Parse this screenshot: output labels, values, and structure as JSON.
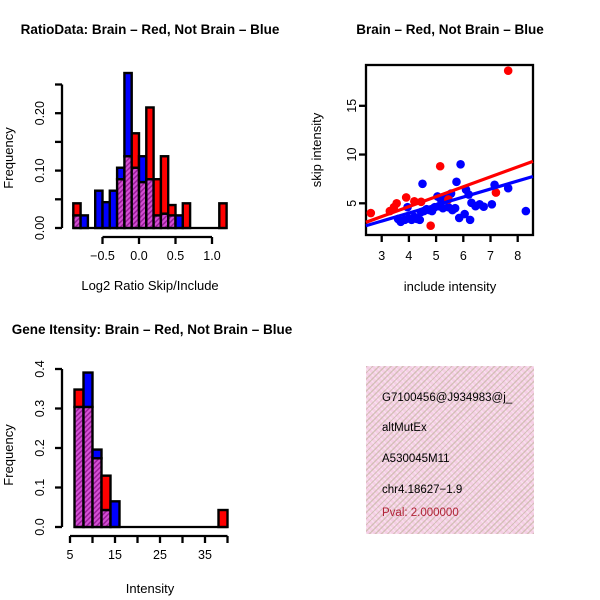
{
  "colors": {
    "brain_red": "#FF0000",
    "notbrain_blue": "#0000FF",
    "overlap_fill": "#9B1F9B",
    "overlap_stripe": "#D44FD4",
    "infobox_pink": "#F5CFE5",
    "infobox_weave": "#BBAF93",
    "pval_red": "#B22438",
    "axis_black": "#000000"
  },
  "chart_data": [
    {
      "id": "ratio-histogram",
      "type": "bar",
      "title": "RatioData: Brain – Red, Not Brain – Blue",
      "xlabel": "Log2 Ratio Skip/Include",
      "ylabel": "Frequency",
      "legend": [
        {
          "name": "Brain",
          "color": "red"
        },
        {
          "name": "Not Brain",
          "color": "blue"
        }
      ],
      "bin_width": 0.1,
      "xlim": [
        -0.95,
        1.25
      ],
      "ylim": [
        0,
        0.25
      ],
      "x_ticks": [
        {
          "v": -0.5,
          "label": "−0.5"
        },
        {
          "v": 0.0,
          "label": "0.0"
        },
        {
          "v": 0.5,
          "label": "0.5"
        },
        {
          "v": 1.0,
          "label": "1.0"
        }
      ],
      "y_ticks": [
        {
          "v": 0,
          "label": "0.00"
        },
        {
          "v": 0.05,
          "label": ""
        },
        {
          "v": 0.1,
          "label": "0.10"
        },
        {
          "v": 0.15,
          "label": ""
        },
        {
          "v": 0.2,
          "label": "0.20"
        },
        {
          "v": 0.25,
          "label": ""
        }
      ],
      "bins": [
        {
          "x": -0.9,
          "blue": 0.022,
          "red": 0.043
        },
        {
          "x": -0.8,
          "blue": 0.022,
          "red": 0
        },
        {
          "x": -0.7,
          "blue": 0,
          "red": 0
        },
        {
          "x": -0.6,
          "blue": 0.065,
          "red": 0
        },
        {
          "x": -0.5,
          "blue": 0.045,
          "red": 0
        },
        {
          "x": -0.4,
          "blue": 0.065,
          "red": 0
        },
        {
          "x": -0.3,
          "blue": 0.105,
          "red": 0.085
        },
        {
          "x": -0.2,
          "blue": 0.27,
          "red": 0.125
        },
        {
          "x": -0.1,
          "blue": 0.105,
          "red": 0.165
        },
        {
          "x": 0.0,
          "blue": 0.125,
          "red": 0.08
        },
        {
          "x": 0.1,
          "blue": 0.085,
          "red": 0.21
        },
        {
          "x": 0.2,
          "blue": 0.022,
          "red": 0.085
        },
        {
          "x": 0.3,
          "blue": 0.025,
          "red": 0.125
        },
        {
          "x": 0.4,
          "blue": 0.022,
          "red": 0.04
        },
        {
          "x": 0.5,
          "blue": 0.022,
          "red": 0
        },
        {
          "x": 0.6,
          "blue": 0,
          "red": 0.043
        },
        {
          "x": 1.1,
          "blue": 0,
          "red": 0.043
        }
      ]
    },
    {
      "id": "intensity-scatter",
      "type": "scatter",
      "title": "Brain – Red, Not Brain – Blue",
      "xlabel": "include intensity",
      "ylabel": "skip intensity",
      "xlim": [
        2.42,
        8.56
      ],
      "ylim": [
        1.75,
        19.2
      ],
      "x_ticks": [
        {
          "v": 3,
          "label": "3"
        },
        {
          "v": 4,
          "label": "4"
        },
        {
          "v": 5,
          "label": "5"
        },
        {
          "v": 6,
          "label": "6"
        },
        {
          "v": 7,
          "label": "7"
        },
        {
          "v": 8,
          "label": "8"
        }
      ],
      "y_ticks": [
        {
          "v": 5,
          "label": "5"
        },
        {
          "v": 10,
          "label": "10"
        },
        {
          "v": 15,
          "label": "15"
        }
      ],
      "red_points": [
        [
          2.6,
          4.0
        ],
        [
          3.3,
          4.2
        ],
        [
          3.45,
          4.6
        ],
        [
          3.55,
          5.0
        ],
        [
          3.9,
          5.6
        ],
        [
          4.2,
          5.2
        ],
        [
          4.45,
          5.15
        ],
        [
          4.8,
          2.7
        ],
        [
          5.15,
          8.8
        ],
        [
          5.45,
          5.4
        ],
        [
          7.2,
          6.1
        ],
        [
          7.65,
          18.6
        ]
      ],
      "blue_points": [
        [
          3.6,
          3.4
        ],
        [
          3.7,
          3.1
        ],
        [
          3.85,
          3.3
        ],
        [
          3.95,
          4.6
        ],
        [
          4.0,
          3.45
        ],
        [
          4.1,
          3.3
        ],
        [
          4.2,
          3.6
        ],
        [
          4.3,
          3.4
        ],
        [
          4.4,
          3.3
        ],
        [
          4.45,
          4.1
        ],
        [
          4.5,
          7.0
        ],
        [
          4.55,
          4.2
        ],
        [
          4.65,
          4.4
        ],
        [
          4.75,
          4.3
        ],
        [
          4.85,
          4.2
        ],
        [
          4.95,
          4.6
        ],
        [
          5.05,
          5.7
        ],
        [
          5.1,
          4.7
        ],
        [
          5.15,
          5.5
        ],
        [
          5.25,
          4.5
        ],
        [
          5.35,
          5.5
        ],
        [
          5.45,
          4.6
        ],
        [
          5.55,
          6.0
        ],
        [
          5.6,
          4.3
        ],
        [
          5.7,
          4.5
        ],
        [
          5.75,
          7.2
        ],
        [
          5.85,
          3.5
        ],
        [
          5.9,
          9.0
        ],
        [
          6.05,
          3.9
        ],
        [
          6.1,
          6.4
        ],
        [
          6.2,
          5.9
        ],
        [
          6.25,
          3.3
        ],
        [
          6.3,
          5.05
        ],
        [
          6.45,
          4.7
        ],
        [
          6.6,
          4.9
        ],
        [
          6.75,
          4.65
        ],
        [
          7.05,
          4.9
        ],
        [
          7.15,
          6.9
        ],
        [
          7.65,
          6.55
        ],
        [
          8.3,
          4.2
        ]
      ],
      "red_line": {
        "x1": 2.42,
        "y1": 3.05,
        "x2": 8.56,
        "y2": 9.3
      },
      "blue_line": {
        "x1": 2.42,
        "y1": 2.7,
        "x2": 8.56,
        "y2": 7.75
      }
    },
    {
      "id": "gene-intensity-histogram",
      "type": "bar",
      "title": "Gene Itensity: Brain – Red, Not Brain – Blue",
      "xlabel": "Intensity",
      "ylabel": "Frequency",
      "legend": [
        {
          "name": "Brain",
          "color": "red"
        },
        {
          "name": "Not Brain",
          "color": "blue"
        }
      ],
      "bin_width": 2,
      "xlim": [
        5,
        40
      ],
      "ylim": [
        0,
        0.4
      ],
      "x_ticks": [
        {
          "v": 5,
          "label": "5"
        },
        {
          "v": 10,
          "label": ""
        },
        {
          "v": 15,
          "label": "15"
        },
        {
          "v": 20,
          "label": ""
        },
        {
          "v": 25,
          "label": "25"
        },
        {
          "v": 30,
          "label": ""
        },
        {
          "v": 35,
          "label": "35"
        },
        {
          "v": 40,
          "label": ""
        }
      ],
      "y_ticks": [
        {
          "v": 0,
          "label": "0.0"
        },
        {
          "v": 0.1,
          "label": "0.1"
        },
        {
          "v": 0.2,
          "label": "0.2"
        },
        {
          "v": 0.3,
          "label": "0.3"
        },
        {
          "v": 0.4,
          "label": "0.4"
        }
      ],
      "bins": [
        {
          "x": 6,
          "blue": 0.304,
          "red": 0.348
        },
        {
          "x": 8,
          "blue": 0.391,
          "red": 0.304
        },
        {
          "x": 10,
          "blue": 0.196,
          "red": 0.174
        },
        {
          "x": 12,
          "blue": 0.043,
          "red": 0.13
        },
        {
          "x": 14,
          "blue": 0.065,
          "red": 0
        },
        {
          "x": 38,
          "blue": 0,
          "red": 0.043
        }
      ]
    }
  ],
  "info_box": {
    "lines": [
      "G7100456@J934983@j_",
      "altMutEx",
      "A530045M11",
      "chr4.18627−1.9"
    ],
    "pval": "Pval: 2.000000"
  }
}
